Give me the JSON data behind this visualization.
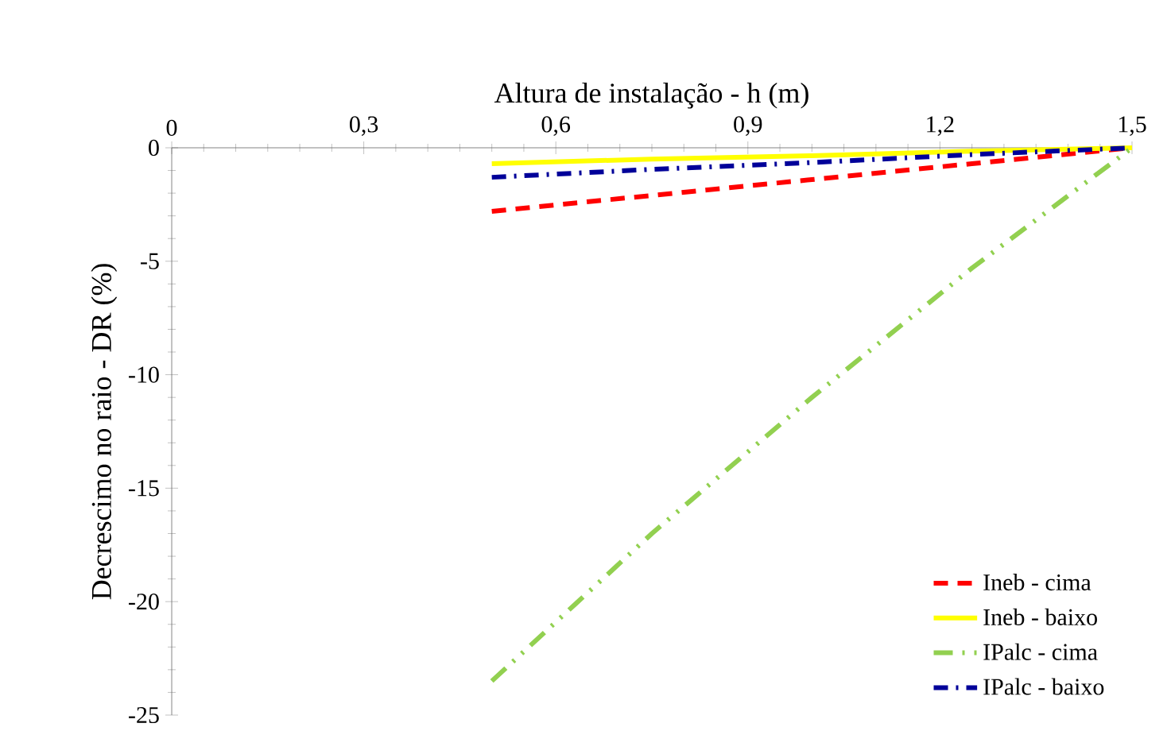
{
  "chart_data": {
    "type": "line",
    "xlabel": "Altura de instalação - h (m)",
    "ylabel": "Decrescimo no raio - DR (%)",
    "xlim": [
      0,
      1.5
    ],
    "xticks": [
      {
        "value": 0,
        "label": "0"
      },
      {
        "value": 0.3,
        "label": "0,3"
      },
      {
        "value": 0.6,
        "label": "0,6"
      },
      {
        "value": 0.9,
        "label": "0,9"
      },
      {
        "value": 1.2,
        "label": "1,2"
      },
      {
        "value": 1.5,
        "label": "1,5"
      }
    ],
    "ylim": [
      -25,
      0
    ],
    "yticks": [
      -25,
      -20,
      -15,
      -10,
      -5,
      0
    ],
    "x": [
      0.5,
      0.75,
      1.0,
      1.25,
      1.5
    ],
    "series": [
      {
        "name": "Ineb - cima",
        "color": "#ff0000",
        "line_style": "dashed",
        "values": [
          -2.8,
          -2.1,
          -1.4,
          -0.7,
          0
        ]
      },
      {
        "name": "Ineb - baixo",
        "color": "#ffff00",
        "line_style": "solid",
        "values": [
          -0.7,
          -0.5,
          -0.35,
          -0.15,
          0
        ]
      },
      {
        "name": "IPalc - cima",
        "color": "#92d050",
        "line_style": "dashdotdotted",
        "values": [
          -23.5,
          -17,
          -11,
          -5.3,
          0
        ]
      },
      {
        "name": "IPalc - baixo",
        "color": "#000099",
        "line_style": "dashdotted",
        "values": [
          -1.3,
          -0.95,
          -0.65,
          -0.3,
          0
        ]
      }
    ],
    "grid": false,
    "legend": "bottom right",
    "marker": "none"
  }
}
